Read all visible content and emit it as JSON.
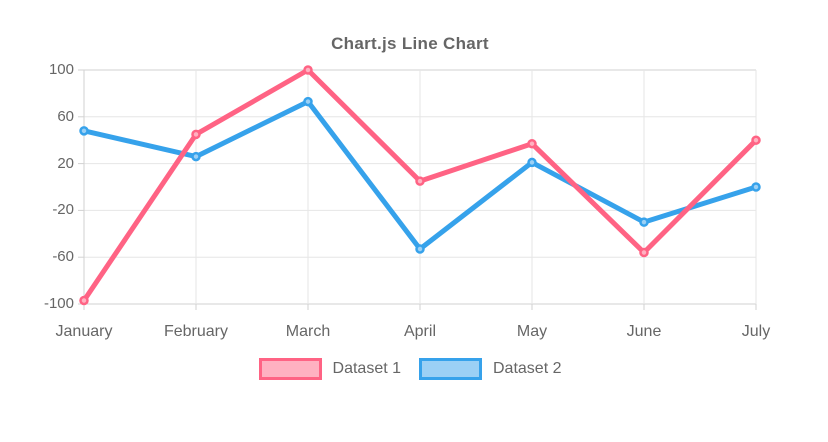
{
  "chart_data": {
    "type": "line",
    "title": "Chart.js Line Chart",
    "categories": [
      "January",
      "February",
      "March",
      "April",
      "May",
      "June",
      "July"
    ],
    "series": [
      {
        "name": "Dataset 1",
        "color": "#FF6384",
        "fill_light": "#FFB1C1",
        "values": [
          -97,
          45,
          100,
          5,
          37,
          -56,
          40
        ]
      },
      {
        "name": "Dataset 2",
        "color": "#36A2EB",
        "fill_light": "#9BD0F5",
        "values": [
          48,
          26,
          73,
          -53,
          21,
          -30,
          0
        ]
      }
    ],
    "ylim": [
      -100,
      100
    ],
    "yticks": [
      100,
      60,
      20,
      -20,
      -60,
      -100
    ],
    "grid": true,
    "legend_position": "bottom",
    "line_width": 5,
    "point_radius": 3.5,
    "text_color": "#666666",
    "grid_color": "#e6e6e6",
    "axis_line_color": "#d2d2d2",
    "background": "#ffffff"
  }
}
